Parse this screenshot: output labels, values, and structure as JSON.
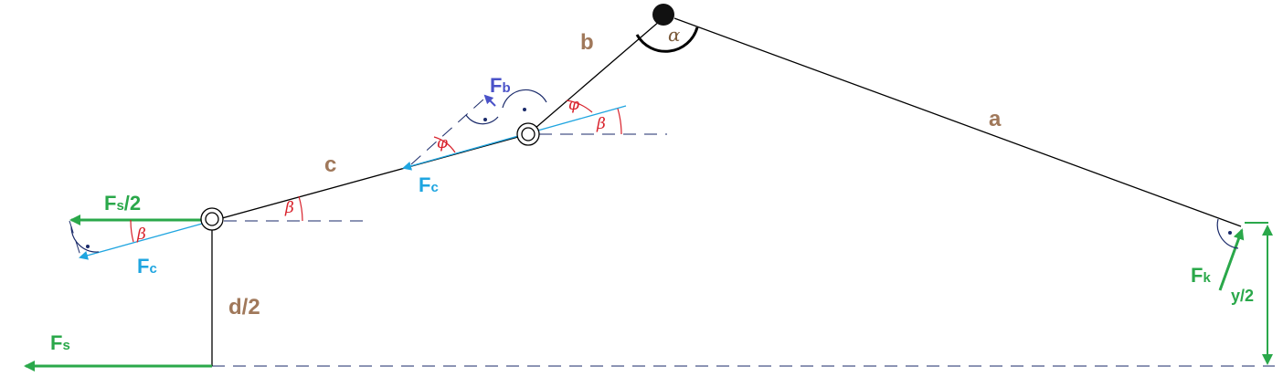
{
  "labels": {
    "a": "a",
    "b": "b",
    "c": "c",
    "d_half": "d/2",
    "y_half": "y/2",
    "alpha": "α",
    "beta": "β",
    "phi": "φ",
    "F": "F",
    "Fb_sub": "b",
    "Fc_sub": "c",
    "Fs_sub": "s",
    "Fk_sub": "k",
    "Fs_half_suffix": "/2"
  },
  "colors": {
    "links": "#000000",
    "force_c": "#1fa5e0",
    "force_s_k": "#2aa84a",
    "force_b": "#4a52c8",
    "angle_arcs": "#d8202a",
    "length_labels": "#a0785a"
  }
}
